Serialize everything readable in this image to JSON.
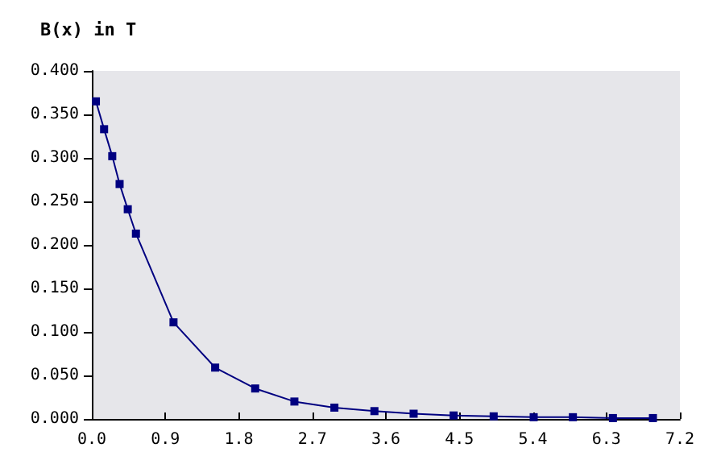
{
  "chart_data": {
    "type": "line",
    "title": "B(x) in T",
    "series": [
      {
        "color": "#000080",
        "x": [
          0.05,
          0.15,
          0.25,
          0.34,
          0.44,
          0.54,
          1.0,
          1.51,
          2.0,
          2.48,
          2.97,
          3.46,
          3.94,
          4.43,
          4.92,
          5.41,
          5.89,
          6.38,
          6.87
        ],
        "values": [
          0.365,
          0.333,
          0.302,
          0.27,
          0.241,
          0.213,
          0.111,
          0.059,
          0.035,
          0.02,
          0.013,
          0.009,
          0.006,
          0.004,
          0.003,
          0.002,
          0.002,
          0.001,
          0.001
        ]
      }
    ],
    "xlim": [
      0,
      7.2
    ],
    "xticks": [
      {
        "value": 0,
        "label": "0.0"
      },
      {
        "value": 0.9,
        "label": "0.9"
      },
      {
        "value": 1.8,
        "label": "1.8"
      },
      {
        "value": 2.7,
        "label": "2.7"
      },
      {
        "value": 3.6,
        "label": "3.6"
      },
      {
        "value": 4.5,
        "label": "4.5"
      },
      {
        "value": 5.4,
        "label": "5.4"
      },
      {
        "value": 6.3,
        "label": "6.3"
      },
      {
        "value": 7.2,
        "label": "7.2"
      }
    ],
    "ylim": [
      0,
      0.4
    ],
    "yticks": [
      {
        "value": 0,
        "label": "0.000"
      },
      {
        "value": 0.05,
        "label": "0.050"
      },
      {
        "value": 0.1,
        "label": "0.100"
      },
      {
        "value": 0.15,
        "label": "0.150"
      },
      {
        "value": 0.2,
        "label": "0.200"
      },
      {
        "value": 0.25,
        "label": "0.250"
      },
      {
        "value": 0.3,
        "label": "0.300"
      },
      {
        "value": 0.35,
        "label": "0.350"
      },
      {
        "value": 0.4,
        "label": "0.400"
      }
    ],
    "grid": false,
    "marker": "square",
    "line_style": "solid"
  }
}
